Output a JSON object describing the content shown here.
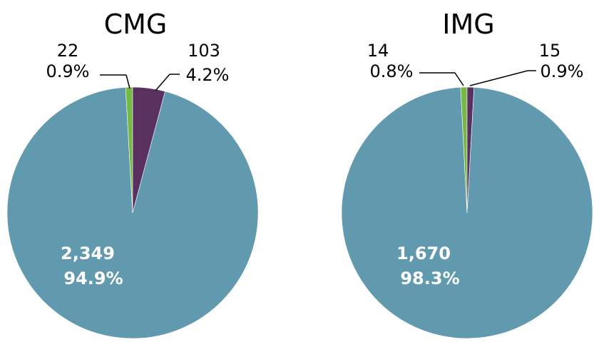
{
  "chart_data": [
    {
      "type": "pie",
      "title": "CMG",
      "slices": [
        {
          "value": 2349,
          "value_label": "2,349",
          "percent_label": "94.9%",
          "color": "#6199ae"
        },
        {
          "value": 22,
          "value_label": "22",
          "percent_label": "0.9%",
          "color": "#76b845"
        },
        {
          "value": 103,
          "value_label": "103",
          "percent_label": "4.2%",
          "color": "#5a3060"
        }
      ]
    },
    {
      "type": "pie",
      "title": "IMG",
      "slices": [
        {
          "value": 1670,
          "value_label": "1,670",
          "percent_label": "98.3%",
          "color": "#6199ae"
        },
        {
          "value": 14,
          "value_label": "14",
          "percent_label": "0.8%",
          "color": "#76b845"
        },
        {
          "value": 15,
          "value_label": "15",
          "percent_label": "0.9%",
          "color": "#5a3060"
        }
      ]
    }
  ]
}
